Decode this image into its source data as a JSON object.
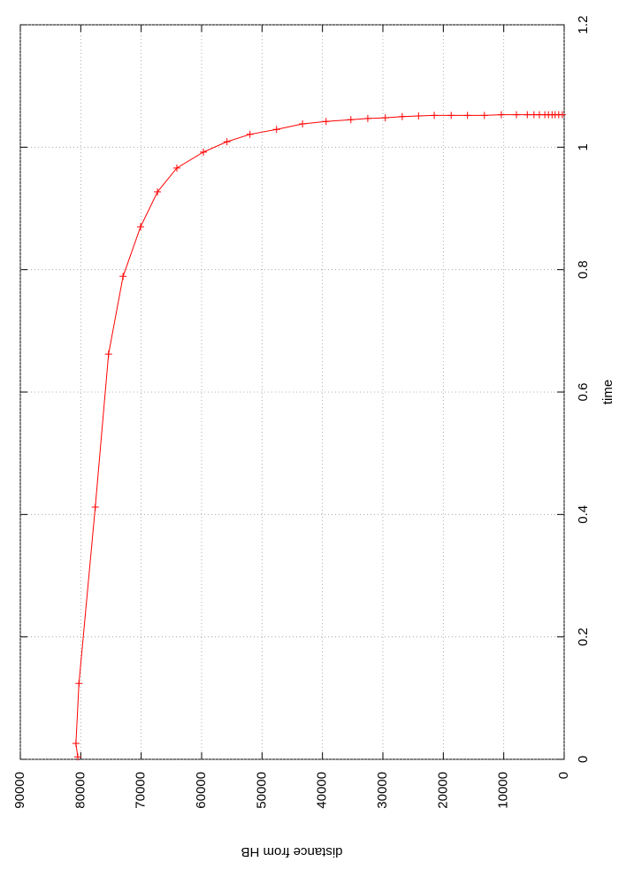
{
  "chart_data": {
    "type": "line",
    "xlabel": "time",
    "ylabel": "distance from HB",
    "xlim": [
      0,
      1.2
    ],
    "xticks": [
      0,
      0.2,
      0.4,
      0.6,
      0.8,
      1,
      1.2
    ],
    "ylim": [
      0,
      90000
    ],
    "yticks": [
      0,
      10000,
      20000,
      30000,
      40000,
      50000,
      60000,
      70000,
      80000,
      90000
    ],
    "grid": true,
    "rotated": true,
    "x": [
      0.004,
      0.026,
      0.124,
      0.412,
      0.662,
      0.789,
      0.87,
      0.927,
      0.966,
      0.992,
      1.009,
      1.021,
      1.029,
      1.038,
      1.042,
      1.045,
      1.047,
      1.048,
      1.05,
      1.051,
      1.052,
      1.052,
      1.052,
      1.052,
      1.053,
      1.053,
      1.053,
      1.053,
      1.053,
      1.053,
      1.053,
      1.053,
      1.053,
      1.053,
      1.053
    ],
    "series": [
      {
        "color": "#ff0000",
        "values": [
          80500,
          80800,
          80300,
          77600,
          75400,
          73000,
          70100,
          67300,
          64100,
          59700,
          55800,
          52000,
          47600,
          43300,
          39400,
          35300,
          32500,
          29600,
          26800,
          24100,
          21500,
          18700,
          16000,
          13200,
          10400,
          7900,
          6100,
          5000,
          4100,
          3200,
          2600,
          2000,
          1500,
          900,
          300
        ]
      }
    ]
  }
}
